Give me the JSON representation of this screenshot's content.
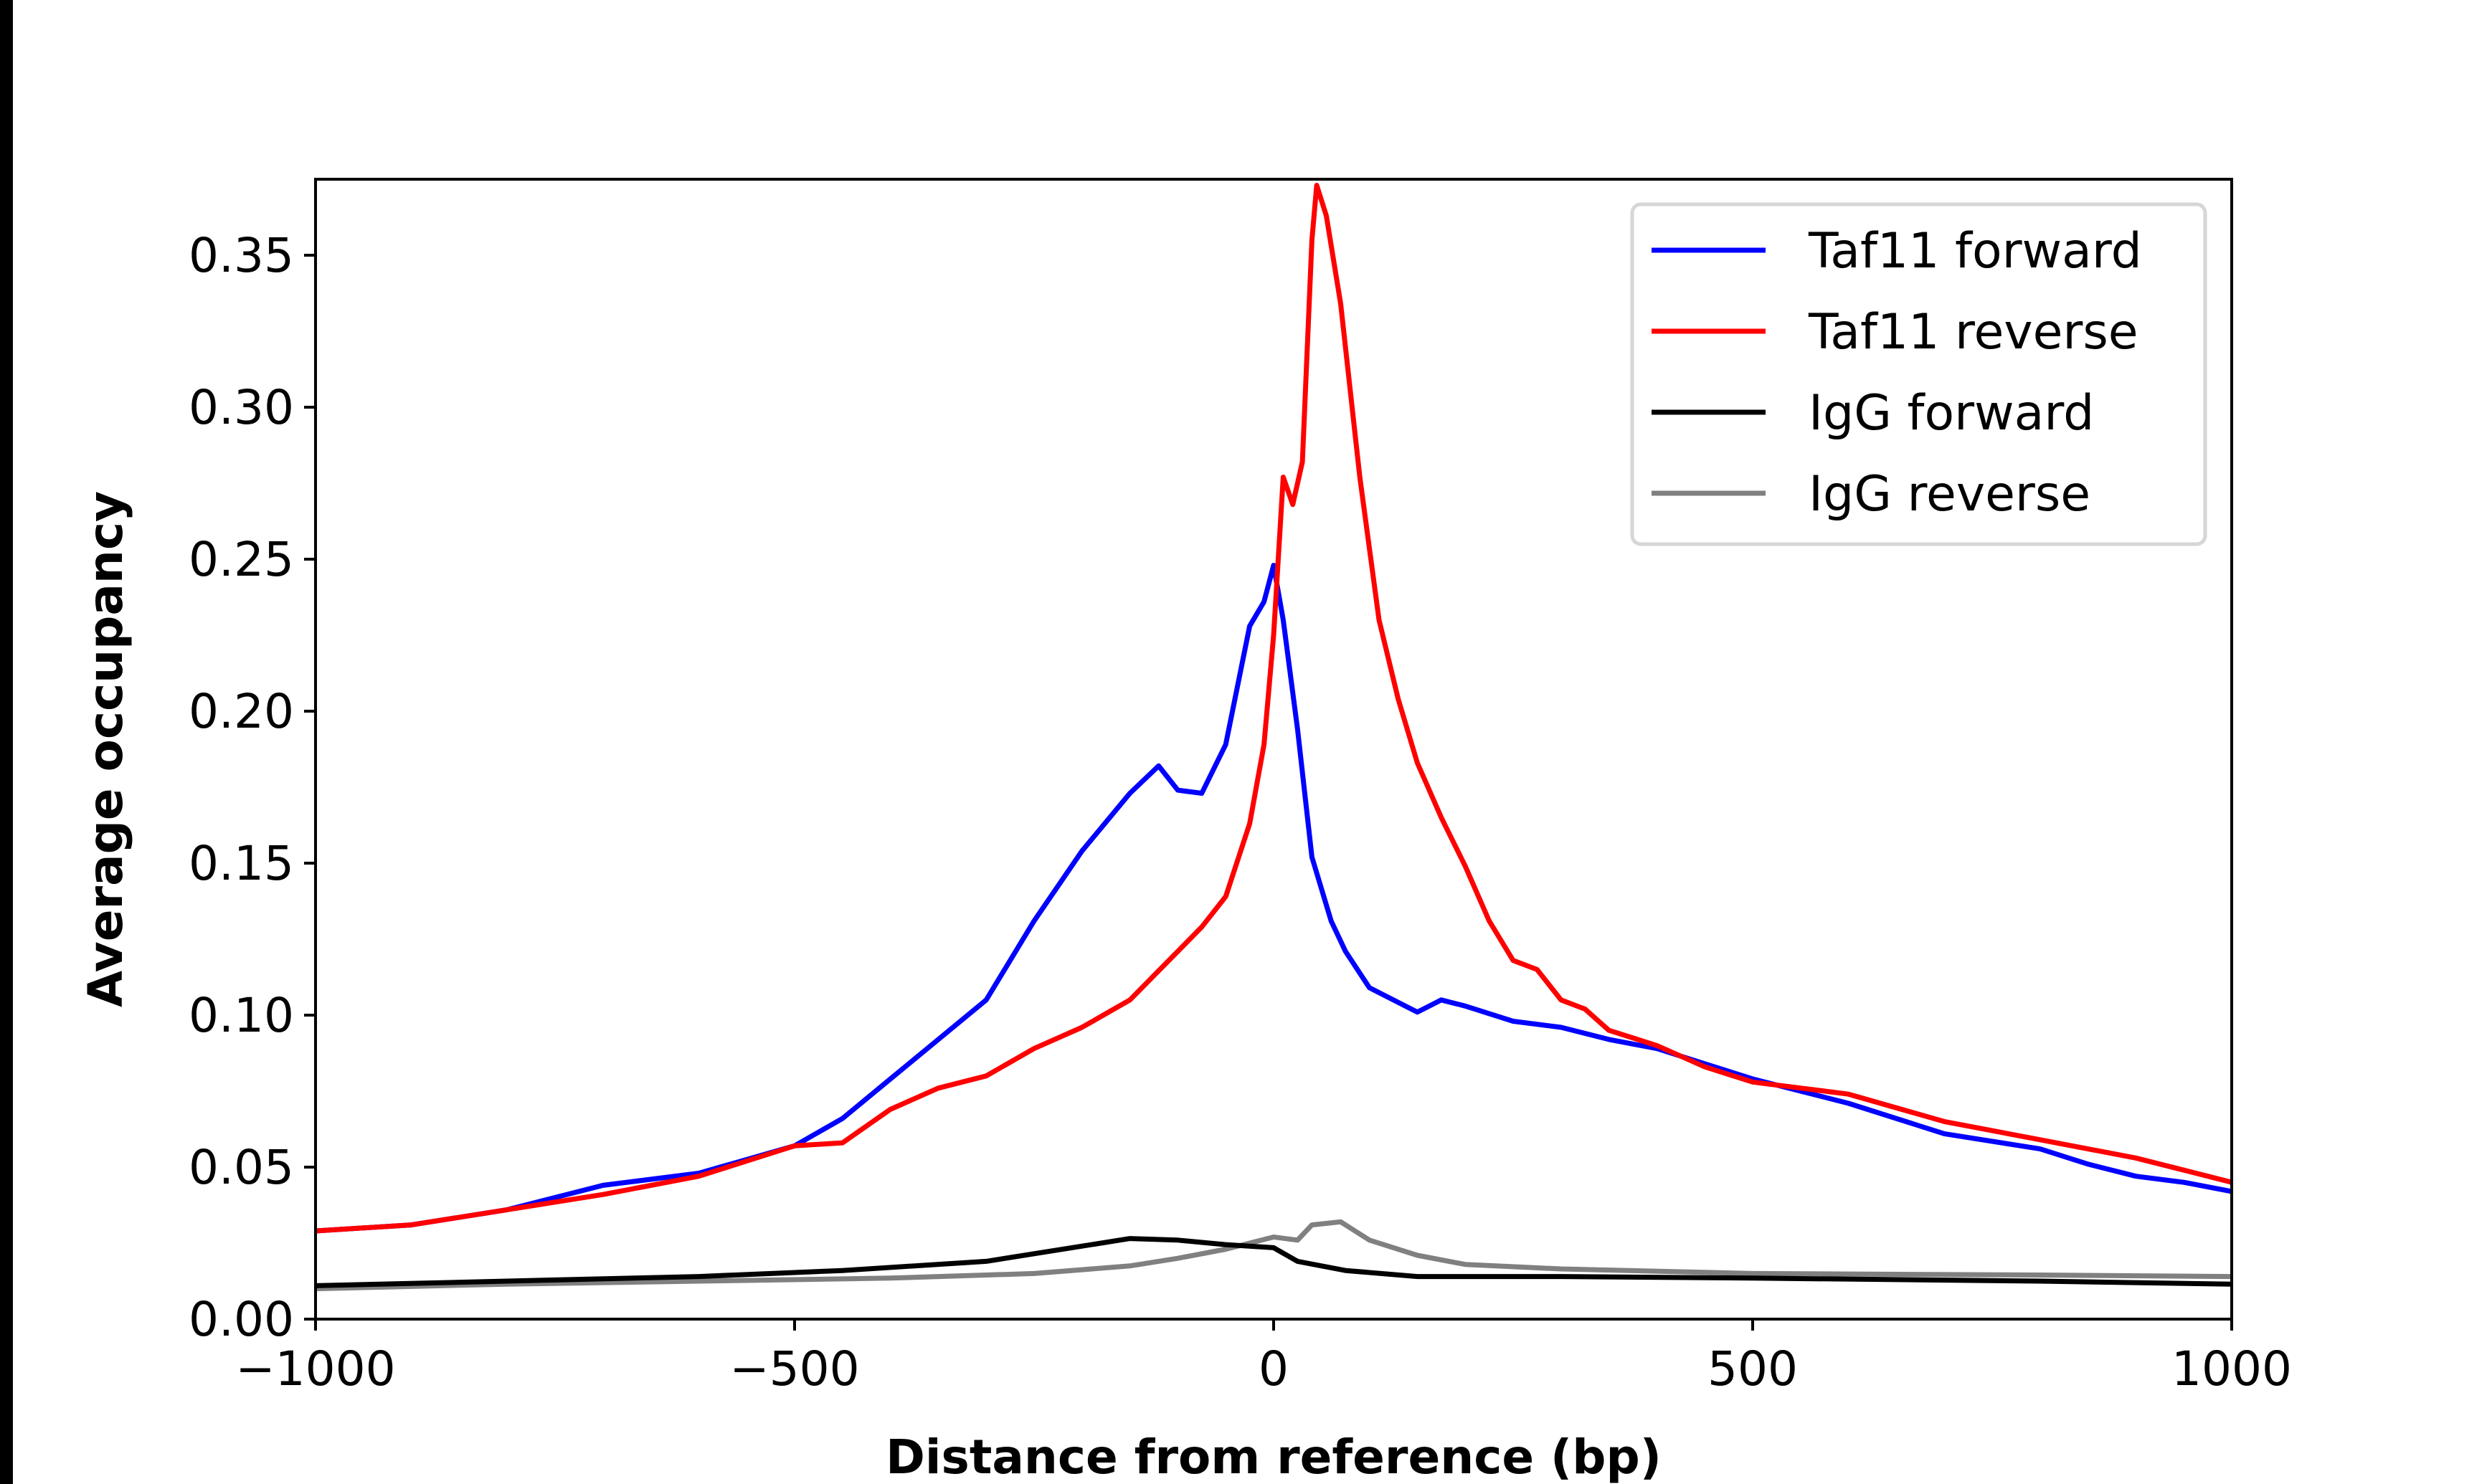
{
  "chart_data": {
    "type": "line",
    "title": "",
    "xlabel": "Distance from reference (bp)",
    "ylabel": "Average occupancy",
    "xlim": [
      -1000,
      1000
    ],
    "ylim": [
      0,
      0.375
    ],
    "xticks": [
      -1000,
      -500,
      0,
      500,
      1000
    ],
    "xtick_labels": [
      "−1000",
      "−500",
      "0",
      "500",
      "1000"
    ],
    "yticks": [
      0,
      0.05,
      0.1,
      0.15,
      0.2,
      0.25,
      0.3,
      0.35
    ],
    "ytick_labels": [
      "0.00",
      "0.05",
      "0.10",
      "0.15",
      "0.20",
      "0.25",
      "0.30",
      "0.35"
    ],
    "grid": false,
    "legend_position": "top-right",
    "series": [
      {
        "name": "Taf11 forward",
        "color": "#0000ff",
        "x": [
          -1000,
          -900,
          -800,
          -700,
          -600,
          -500,
          -450,
          -400,
          -350,
          -300,
          -250,
          -200,
          -150,
          -120,
          -100,
          -75,
          -50,
          -25,
          -10,
          0,
          10,
          25,
          40,
          60,
          75,
          100,
          150,
          175,
          200,
          250,
          300,
          350,
          400,
          450,
          500,
          600,
          700,
          800,
          850,
          900,
          950,
          1000
        ],
        "y": [
          0.029,
          0.031,
          0.036,
          0.044,
          0.048,
          0.057,
          0.066,
          0.079,
          0.092,
          0.105,
          0.131,
          0.154,
          0.173,
          0.182,
          0.174,
          0.173,
          0.189,
          0.228,
          0.236,
          0.248,
          0.23,
          0.194,
          0.152,
          0.131,
          0.121,
          0.109,
          0.101,
          0.105,
          0.103,
          0.098,
          0.096,
          0.092,
          0.089,
          0.084,
          0.079,
          0.071,
          0.061,
          0.056,
          0.051,
          0.047,
          0.045,
          0.042
        ]
      },
      {
        "name": "Taf11 reverse",
        "color": "#ff0000",
        "x": [
          -1000,
          -900,
          -800,
          -700,
          -600,
          -500,
          -450,
          -400,
          -350,
          -300,
          -250,
          -200,
          -150,
          -100,
          -75,
          -50,
          -25,
          -10,
          0,
          10,
          20,
          30,
          40,
          45,
          55,
          70,
          90,
          110,
          130,
          150,
          175,
          200,
          225,
          250,
          275,
          300,
          325,
          350,
          400,
          450,
          500,
          600,
          700,
          800,
          900,
          950,
          1000
        ],
        "y": [
          0.029,
          0.031,
          0.036,
          0.041,
          0.047,
          0.057,
          0.058,
          0.069,
          0.076,
          0.08,
          0.089,
          0.096,
          0.105,
          0.121,
          0.129,
          0.139,
          0.163,
          0.189,
          0.225,
          0.277,
          0.268,
          0.282,
          0.355,
          0.373,
          0.363,
          0.334,
          0.277,
          0.23,
          0.204,
          0.183,
          0.165,
          0.149,
          0.131,
          0.118,
          0.115,
          0.105,
          0.102,
          0.095,
          0.09,
          0.083,
          0.078,
          0.074,
          0.065,
          0.059,
          0.053,
          0.049,
          0.045
        ]
      },
      {
        "name": "IgG forward",
        "color": "#000000",
        "x": [
          -1000,
          -800,
          -600,
          -450,
          -300,
          -200,
          -150,
          -100,
          -50,
          0,
          25,
          75,
          150,
          300,
          500,
          800,
          1000
        ],
        "y": [
          0.011,
          0.0125,
          0.014,
          0.016,
          0.019,
          0.024,
          0.0265,
          0.026,
          0.0245,
          0.0235,
          0.019,
          0.016,
          0.014,
          0.014,
          0.0135,
          0.0125,
          0.0115
        ]
      },
      {
        "name": "IgG reverse",
        "color": "#808080",
        "x": [
          -1000,
          -800,
          -600,
          -400,
          -250,
          -150,
          -100,
          -50,
          0,
          25,
          40,
          70,
          100,
          150,
          200,
          300,
          500,
          800,
          1000
        ],
        "y": [
          0.01,
          0.0115,
          0.0125,
          0.0135,
          0.015,
          0.0175,
          0.02,
          0.023,
          0.027,
          0.026,
          0.031,
          0.032,
          0.026,
          0.021,
          0.018,
          0.0165,
          0.015,
          0.0145,
          0.014
        ]
      }
    ]
  }
}
